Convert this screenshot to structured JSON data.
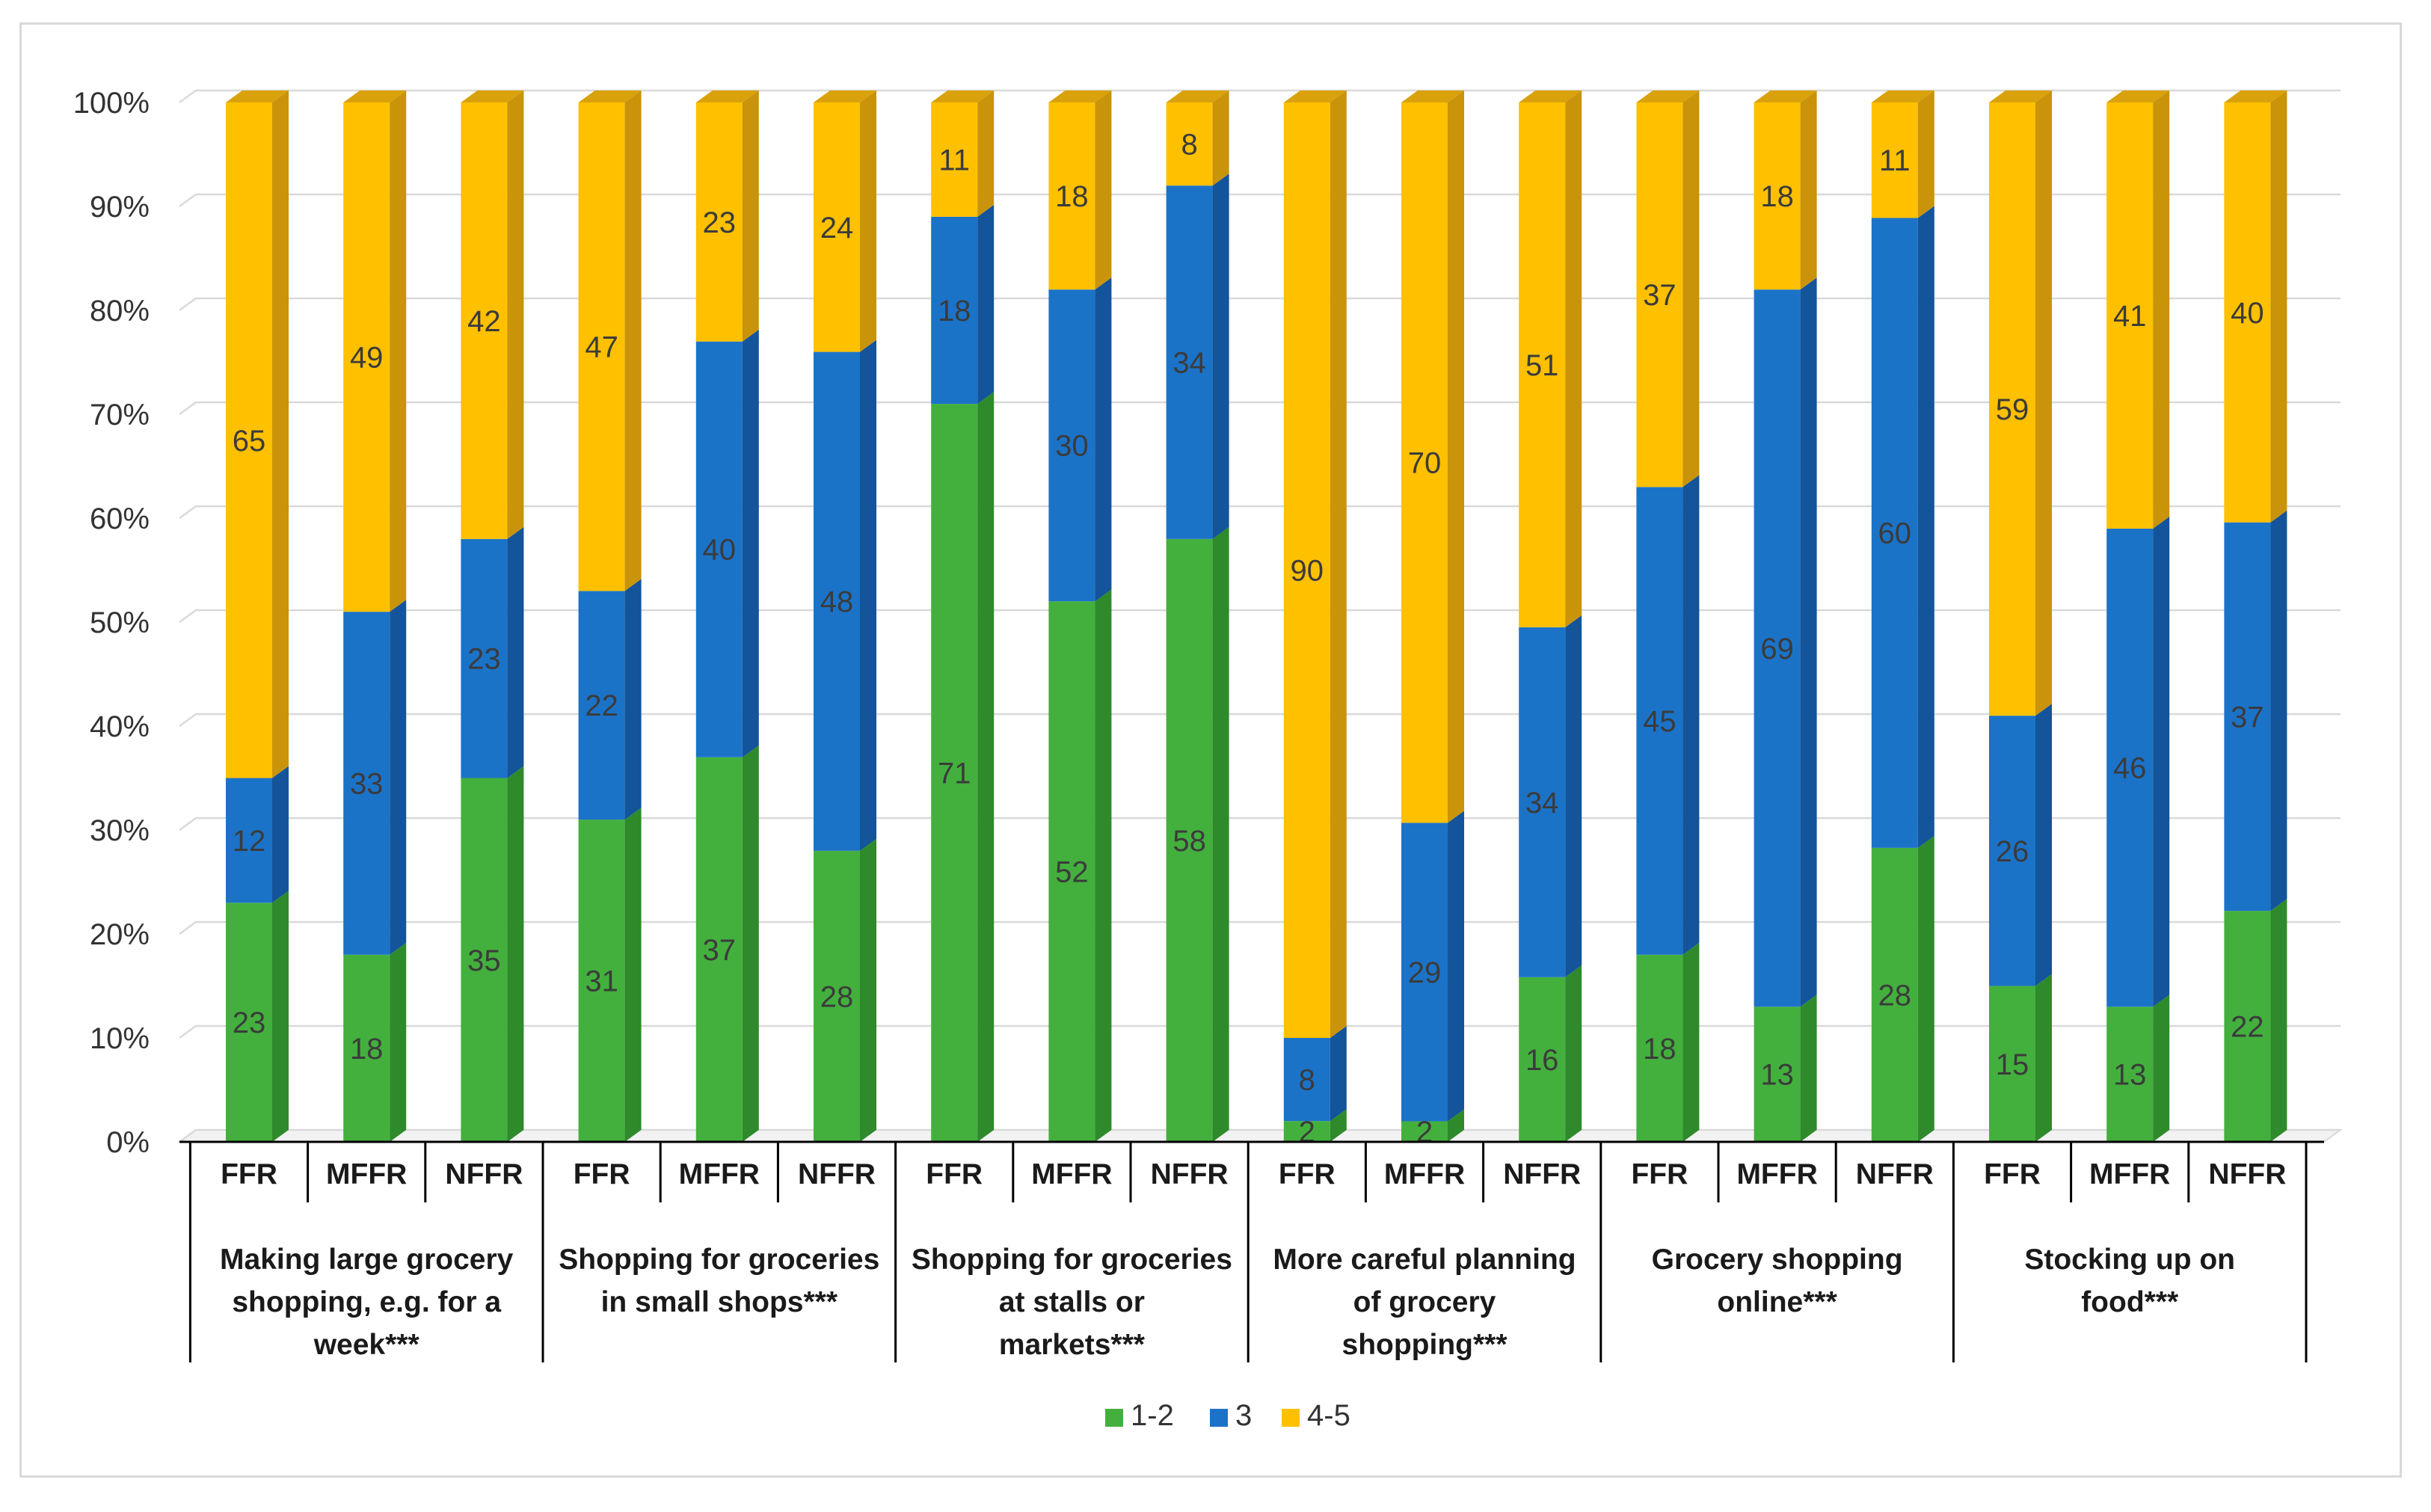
{
  "chart_data": {
    "type": "bar",
    "stacked": true,
    "percent_axis": true,
    "title": "",
    "xlabel": "",
    "ylabel": "",
    "ylim": [
      0,
      100
    ],
    "y_ticks": [
      "0%",
      "10%",
      "20%",
      "30%",
      "40%",
      "50%",
      "60%",
      "70%",
      "80%",
      "90%",
      "100%"
    ],
    "grid": true,
    "legend_position": "bottom",
    "categories": [
      "FFR",
      "MFFR",
      "NFFR"
    ],
    "groups": [
      {
        "label": [
          "Making large grocery",
          "shopping, e.g. for a",
          "week***"
        ],
        "bars": [
          {
            "cat": "FFR",
            "values": [
              23,
              12,
              65
            ]
          },
          {
            "cat": "MFFR",
            "values": [
              18,
              33,
              49
            ]
          },
          {
            "cat": "NFFR",
            "values": [
              35,
              23,
              42
            ]
          }
        ]
      },
      {
        "label": [
          "Shopping for groceries",
          "in small shops***"
        ],
        "bars": [
          {
            "cat": "FFR",
            "values": [
              31,
              22,
              47
            ]
          },
          {
            "cat": "MFFR",
            "values": [
              37,
              40,
              23
            ]
          },
          {
            "cat": "NFFR",
            "values": [
              28,
              48,
              24
            ]
          }
        ]
      },
      {
        "label": [
          "Shopping for groceries",
          "at stalls or",
          "markets***"
        ],
        "bars": [
          {
            "cat": "FFR",
            "values": [
              71,
              18,
              11
            ]
          },
          {
            "cat": "MFFR",
            "values": [
              52,
              30,
              18
            ]
          },
          {
            "cat": "NFFR",
            "values": [
              58,
              34,
              8
            ]
          }
        ]
      },
      {
        "label": [
          "More careful planning",
          "of grocery",
          "shopping***"
        ],
        "bars": [
          {
            "cat": "FFR",
            "values": [
              2,
              8,
              90
            ]
          },
          {
            "cat": "MFFR",
            "values": [
              2,
              29,
              70
            ]
          },
          {
            "cat": "NFFR",
            "values": [
              16,
              34,
              51
            ]
          }
        ]
      },
      {
        "label": [
          "Grocery shopping",
          "online***"
        ],
        "bars": [
          {
            "cat": "FFR",
            "values": [
              18,
              45,
              37
            ]
          },
          {
            "cat": "MFFR",
            "values": [
              13,
              69,
              18
            ]
          },
          {
            "cat": "NFFR",
            "values": [
              28,
              60,
              11
            ]
          }
        ]
      },
      {
        "label": [
          "Stocking up on",
          "food***"
        ],
        "bars": [
          {
            "cat": "FFR",
            "values": [
              15,
              26,
              59
            ]
          },
          {
            "cat": "MFFR",
            "values": [
              13,
              46,
              41
            ]
          },
          {
            "cat": "NFFR",
            "values": [
              22,
              37,
              40
            ]
          }
        ]
      }
    ],
    "series": [
      {
        "name": "1-2",
        "color": "#43b03d",
        "side": "#2e8a2a",
        "top": "#5cc455"
      },
      {
        "name": "3",
        "color": "#1b73c8",
        "side": "#13549a",
        "top": "#3a8ad6"
      },
      {
        "name": "4-5",
        "color": "#ffc000",
        "side": "#c9930a",
        "top": "#d9a20c"
      }
    ]
  }
}
